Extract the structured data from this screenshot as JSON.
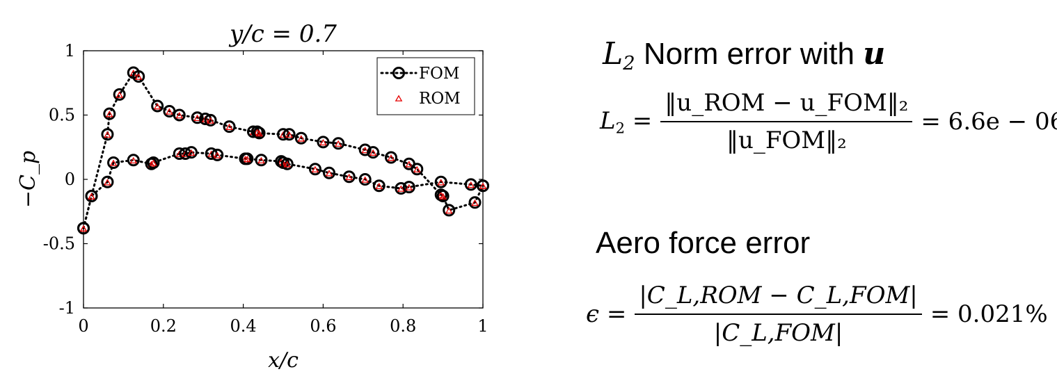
{
  "chart_data": {
    "type": "line",
    "title": "y/c = 0.7",
    "xlabel": "x/c",
    "ylabel": "−C_p",
    "xlim": [
      0,
      1
    ],
    "ylim": [
      -1,
      1
    ],
    "xticks": [
      "0",
      "0.2",
      "0.4",
      "0.6",
      "0.8",
      "1"
    ],
    "yticks": [
      "-1",
      "-0.5",
      "0",
      "0.5",
      "1"
    ],
    "legend_position": "top-right",
    "grid": false,
    "series": [
      {
        "name": "FOM",
        "style": "dotted black line with open circle markers",
        "color": "#000000",
        "segments": [
          {
            "x": [
              0.0,
              0.02,
              0.06,
              0.065,
              0.09,
              0.125,
              0.138,
              0.185,
              0.215,
              0.24,
              0.285,
              0.305,
              0.318,
              0.365,
              0.425,
              0.435,
              0.44,
              0.5,
              0.515,
              0.545,
              0.6,
              0.638,
              0.705,
              0.725,
              0.77,
              0.815,
              0.835,
              0.895,
              0.9,
              0.915,
              0.98,
              1.0
            ],
            "y": [
              -0.38,
              -0.13,
              0.35,
              0.51,
              0.66,
              0.83,
              0.8,
              0.57,
              0.53,
              0.5,
              0.48,
              0.47,
              0.46,
              0.41,
              0.37,
              0.37,
              0.36,
              0.35,
              0.35,
              0.32,
              0.29,
              0.28,
              0.23,
              0.21,
              0.17,
              0.12,
              0.08,
              -0.12,
              -0.13,
              -0.24,
              -0.18,
              -0.05
            ]
          },
          {
            "x": [
              0.0,
              0.02,
              0.06,
              0.075,
              0.125,
              0.17,
              0.175,
              0.24,
              0.255,
              0.27,
              0.32,
              0.335,
              0.405,
              0.41,
              0.445,
              0.495,
              0.5,
              0.51,
              0.58,
              0.615,
              0.665,
              0.705,
              0.74,
              0.795,
              0.815,
              0.895,
              0.97,
              1.0
            ],
            "y": [
              -0.38,
              -0.13,
              -0.02,
              0.13,
              0.15,
              0.12,
              0.13,
              0.2,
              0.2,
              0.21,
              0.2,
              0.19,
              0.16,
              0.16,
              0.15,
              0.14,
              0.13,
              0.12,
              0.08,
              0.05,
              0.02,
              0.0,
              -0.05,
              -0.07,
              -0.06,
              -0.02,
              -0.04,
              -0.05
            ]
          }
        ]
      },
      {
        "name": "ROM",
        "style": "red open triangle markers",
        "color": "#e60000",
        "marker_of": "FOM"
      }
    ]
  },
  "panel": {
    "l2_heading_prefix": "L",
    "l2_heading_sub": "2",
    "l2_heading_text": "Norm error with",
    "l2_heading_var": "u",
    "l2_eq_lhs": "L",
    "l2_eq_lhs_sub": "2",
    "l2_eq_num": "‖u_ROM − u_FOM‖₂",
    "l2_eq_den": "‖u_FOM‖₂",
    "l2_eq_value": "= 6.6e − 06",
    "aero_heading": "Aero force  error",
    "aero_eq_lhs": "ϵ =",
    "aero_eq_num": "|C_L,ROM − C_L,FOM|",
    "aero_eq_den": "|C_L,FOM|",
    "aero_eq_value": "= 0.021%"
  }
}
